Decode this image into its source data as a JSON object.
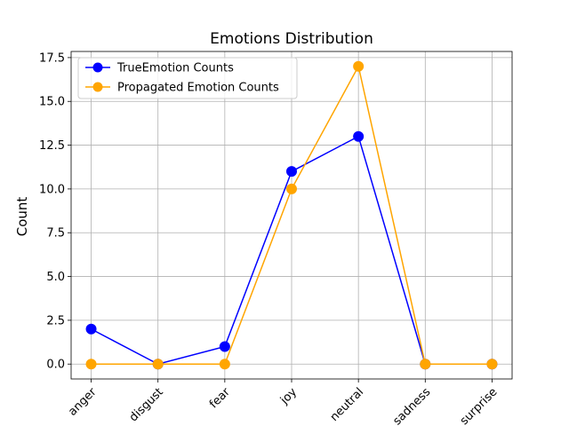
{
  "chart_data": {
    "type": "line",
    "title": "Emotions Distribution",
    "xlabel": "",
    "ylabel": "Count",
    "categories": [
      "anger",
      "disgust",
      "fear",
      "joy",
      "neutral",
      "sadness",
      "surprise"
    ],
    "ylim": [
      -0.85,
      17.85
    ],
    "yticks": [
      "0.0",
      "2.5",
      "5.0",
      "7.5",
      "10.0",
      "12.5",
      "15.0",
      "17.5"
    ],
    "ytick_values": [
      0,
      2.5,
      5,
      7.5,
      10,
      12.5,
      15,
      17.5
    ],
    "grid": true,
    "legend_position": "top-left",
    "series": [
      {
        "name": "TrueEmotion Counts",
        "color": "#0000ff",
        "values": [
          2,
          0,
          1,
          11,
          13,
          0,
          0
        ]
      },
      {
        "name": "Propagated Emotion Counts",
        "color": "#ffa500",
        "values": [
          0,
          0,
          0,
          10,
          17,
          0,
          0
        ]
      }
    ]
  }
}
